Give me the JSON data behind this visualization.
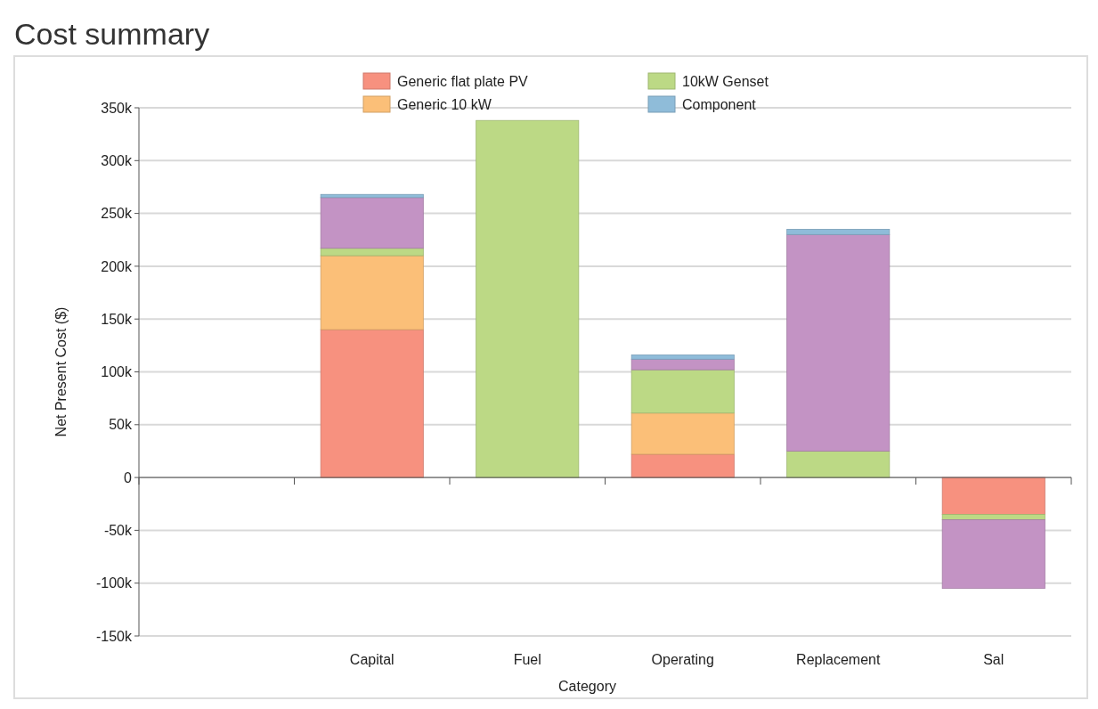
{
  "chart_data": {
    "type": "bar",
    "title": "Cost summary",
    "xlabel": "Category",
    "ylabel": "Net Present Cost ($)",
    "categories": [
      null,
      "Capital",
      "Fuel",
      "Operating",
      "Replacement",
      "Sal"
    ],
    "stacked": true,
    "series": [
      {
        "name": "Generic flat plate PV",
        "color": "#f7917f",
        "values": [
          null,
          140000,
          null,
          22000,
          null,
          -35000
        ]
      },
      {
        "name": "Generic 10 kW",
        "color": "#fbbf78",
        "values": [
          null,
          70000,
          null,
          39000,
          null,
          null
        ]
      },
      {
        "name": "10kW Genset",
        "color": "#bcd985",
        "values": [
          null,
          7000,
          338000,
          41000,
          25000,
          -5000
        ]
      },
      {
        "color": "#c393c4",
        "values": [
          null,
          48000,
          null,
          10000,
          205000,
          -65000
        ]
      },
      {
        "name": "Component",
        "color": "#8fbcd9",
        "values": [
          null,
          3000,
          null,
          4000,
          5000,
          null
        ]
      }
    ],
    "ylim": [
      -150000,
      350000
    ],
    "yticks": [
      {
        "value": -150000,
        "label": "-150k"
      },
      {
        "value": -100000,
        "label": "-100k"
      },
      {
        "value": -50000,
        "label": "-50k"
      },
      0,
      {
        "value": 50000,
        "label": "50k"
      },
      {
        "value": 100000,
        "label": "100k"
      },
      {
        "value": 150000,
        "label": "150k"
      },
      {
        "value": 200000,
        "label": "200k"
      },
      {
        "value": 250000,
        "label": "250k"
      },
      {
        "value": 300000,
        "label": "300k"
      },
      {
        "value": 350000,
        "label": "350k"
      }
    ],
    "grid": "y",
    "legend": "top"
  }
}
